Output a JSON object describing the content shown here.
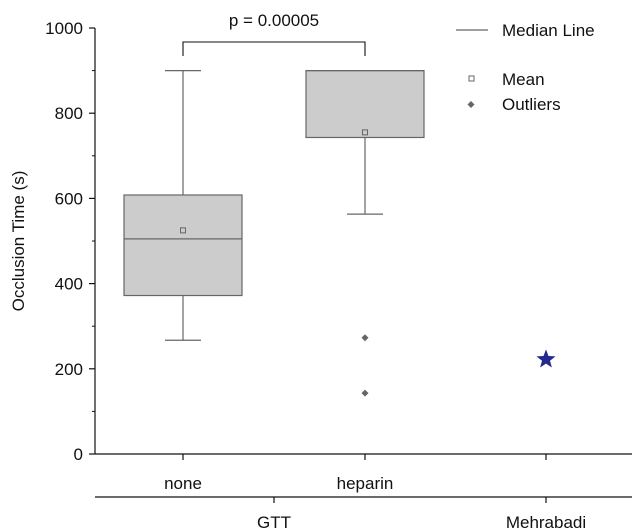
{
  "chart_data": {
    "type": "box",
    "ylabel": "Occlusion Time (s)",
    "ylim": [
      0,
      1000
    ],
    "yticks": [
      "0",
      "200",
      "400",
      "600",
      "800",
      "1000"
    ],
    "categories": [
      "none",
      "heparin"
    ],
    "groups": [
      {
        "label": "GTT",
        "categories": [
          "none",
          "heparin"
        ]
      },
      {
        "label": "Mehrabadi",
        "categories": [
          ""
        ]
      }
    ],
    "boxes": [
      {
        "category": "none",
        "whisker_low": 267,
        "q1": 372,
        "median": 505,
        "q3": 608,
        "whisker_high": 900,
        "mean": 525,
        "outliers": []
      },
      {
        "category": "heparin",
        "whisker_low": 563,
        "q1": 743,
        "median": 900,
        "q3": 900,
        "whisker_high": 900,
        "mean": 755,
        "outliers": [
          273,
          143
        ]
      }
    ],
    "reference_points": [
      {
        "group": "Mehrabadi",
        "value": 222,
        "marker": "star",
        "color": "#232a8c"
      }
    ],
    "annotation": {
      "text": "p = 0.00005",
      "between": [
        "none",
        "heparin"
      ]
    },
    "legend": {
      "position": "top-right",
      "items": [
        {
          "label": "Median Line",
          "symbol": "line"
        },
        {
          "label": "Mean",
          "symbol": "open-square"
        },
        {
          "label": "Outliers",
          "symbol": "diamond"
        }
      ]
    },
    "colors": {
      "box_fill": "#cccccc",
      "box_stroke": "#666666",
      "outlier": "#666666",
      "star": "#232a8c",
      "axis": "#111111"
    }
  }
}
